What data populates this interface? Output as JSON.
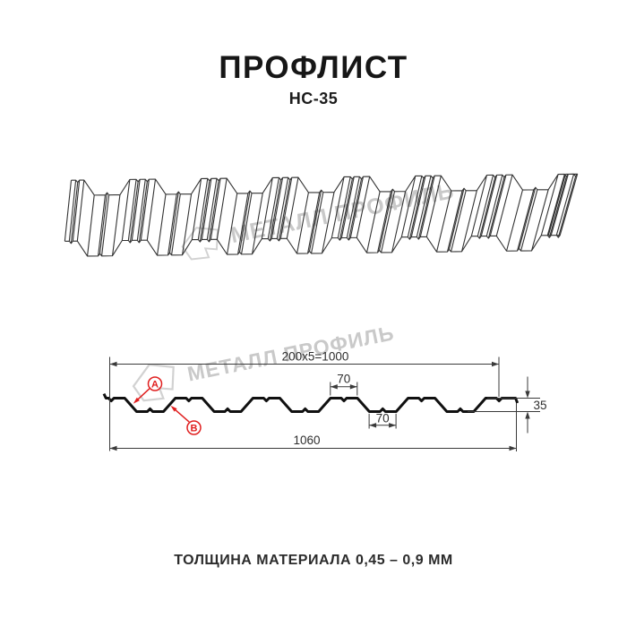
{
  "header": {
    "title": "ПРОФЛИСТ",
    "subtitle": "НС-35"
  },
  "watermarks": {
    "brand_text": "МЕТАЛЛ ПРОФИЛЬ"
  },
  "drawing": {
    "type": "corrugated-sheet-profile-diagram",
    "dimensions": {
      "rib_spacing": "200x5=1000",
      "crest_width": "70",
      "trough_width": "70",
      "profile_height": "35",
      "overall_width": "1060"
    },
    "markers": {
      "a": "A",
      "b": "B"
    }
  },
  "footer": {
    "note": "ТОЛЩИНА МАТЕРИАЛА 0,45 – 0,9 ММ"
  },
  "colors": {
    "marker_red": "#e01f1f",
    "line_dark": "#1a1a1a",
    "watermark_gray": "#c9c9c9"
  }
}
